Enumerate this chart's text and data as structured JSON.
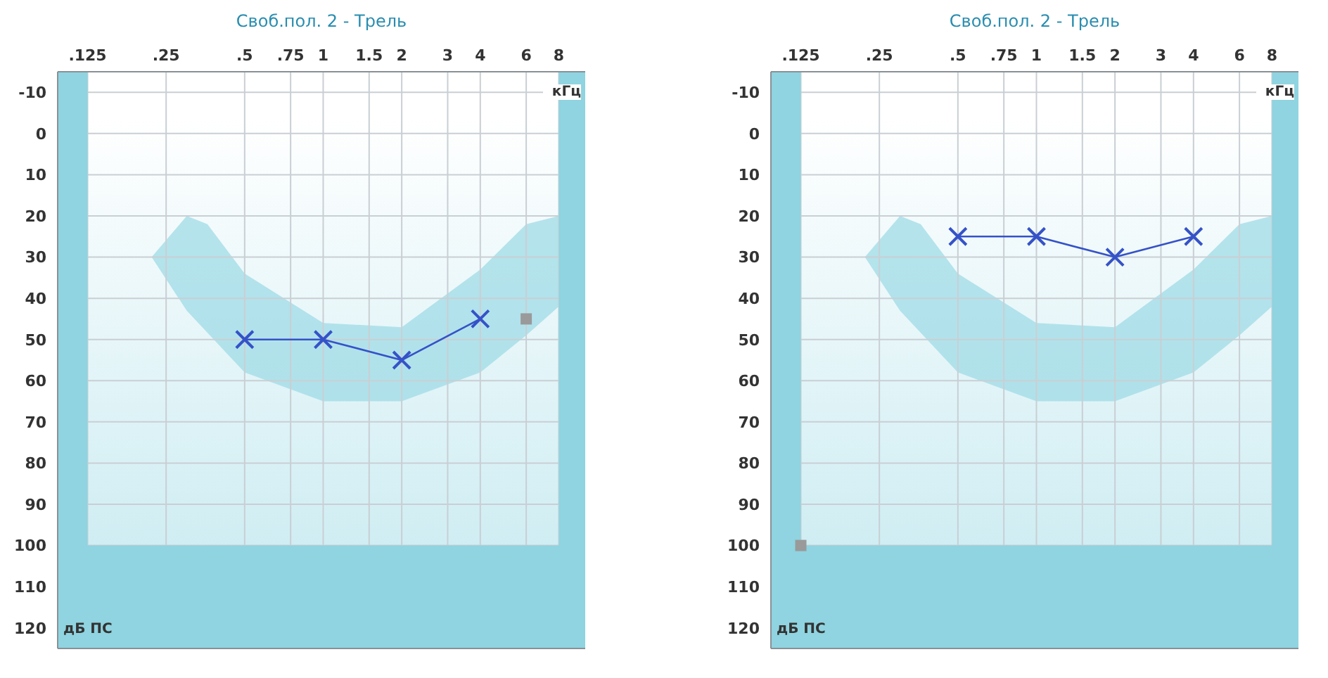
{
  "chart_data": [
    {
      "type": "line",
      "title": "Своб.пол. 2 - Трель",
      "xlabel": "кГц",
      "ylabel": "дБ ПС",
      "log": "x",
      "xlim": [
        0.096,
        10.1
      ],
      "xticks": [
        {
          "value": 0.125,
          "label": ".125"
        },
        {
          "value": 0.25,
          "label": ".25"
        },
        {
          "value": 0.5,
          "label": ".5"
        },
        {
          "value": 0.75,
          "label": ".75"
        },
        1,
        1.5,
        2,
        3,
        4,
        6,
        8
      ],
      "ylim": [
        125,
        -15
      ],
      "yticks": [
        -10,
        0,
        10,
        20,
        30,
        40,
        50,
        60,
        70,
        80,
        90,
        100,
        110,
        120
      ],
      "grid": true,
      "series": [
        {
          "type": "line",
          "color": "#3552c8",
          "x": [
            0.5,
            1,
            2,
            4
          ],
          "values": [
            50,
            50,
            55,
            45
          ],
          "marker": "cross",
          "line_style": "solid"
        },
        {
          "type": "scatter",
          "color": "#9a9a9a",
          "x": [
            6
          ],
          "values": [
            45
          ],
          "marker": "square"
        }
      ],
      "bands": [
        {
          "axis": "x",
          "from": 0.096,
          "to": 0.125,
          "color": "#8fd4e0"
        },
        {
          "axis": "x",
          "from": 8,
          "to": 10.1,
          "color": "#8fd4e0"
        },
        {
          "axis": "y",
          "from": 100,
          "to": 125,
          "color": "#8fd4e0"
        }
      ]
    },
    {
      "type": "line",
      "title": "Своб.пол. 2 - Трель",
      "xlabel": "кГц",
      "ylabel": "дБ ПС",
      "log": "x",
      "xlim": [
        0.096,
        10.1
      ],
      "xticks": [
        {
          "value": 0.125,
          "label": ".125"
        },
        {
          "value": 0.25,
          "label": ".25"
        },
        {
          "value": 0.5,
          "label": ".5"
        },
        {
          "value": 0.75,
          "label": ".75"
        },
        1,
        1.5,
        2,
        3,
        4,
        6,
        8
      ],
      "ylim": [
        125,
        -15
      ],
      "yticks": [
        -10,
        0,
        10,
        20,
        30,
        40,
        50,
        60,
        70,
        80,
        90,
        100,
        110,
        120
      ],
      "grid": true,
      "series": [
        {
          "type": "line",
          "color": "#3552c8",
          "x": [
            0.5,
            1,
            2,
            4
          ],
          "values": [
            25,
            25,
            30,
            25
          ],
          "marker": "cross",
          "line_style": "solid"
        },
        {
          "type": "scatter",
          "color": "#9a9a9a",
          "x": [
            0.125
          ],
          "values": [
            100
          ],
          "marker": "square"
        }
      ],
      "bands": [
        {
          "axis": "x",
          "from": 0.096,
          "to": 0.125,
          "color": "#8fd4e0"
        },
        {
          "axis": "x",
          "from": 8,
          "to": 10.1,
          "color": "#8fd4e0"
        },
        {
          "axis": "y",
          "from": 100,
          "to": 125,
          "color": "#8fd4e0"
        }
      ]
    }
  ]
}
